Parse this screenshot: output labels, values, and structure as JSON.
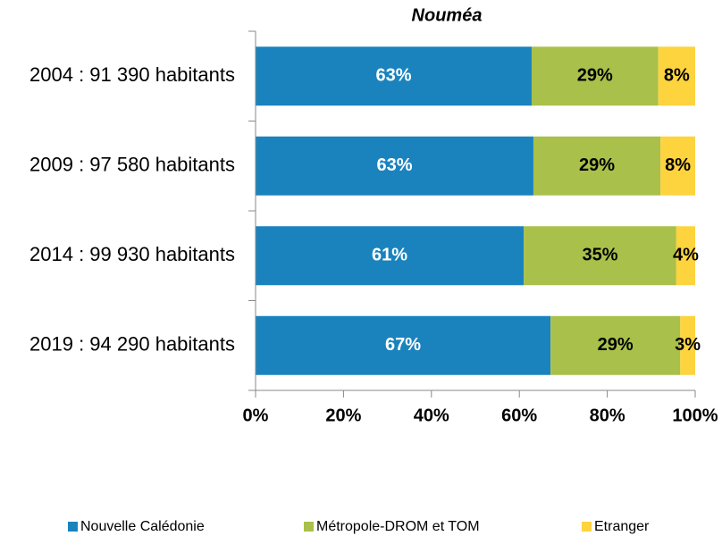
{
  "chart_data": {
    "type": "stacked-bar-horizontal",
    "title": "Nouméa",
    "categories": [
      "2004 : 91 390 habitants",
      "2009 : 97 580 habitants",
      "2014 : 99 930 habitants",
      "2019 : 94 290 habitants"
    ],
    "series": [
      {
        "name": "Nouvelle Calédonie",
        "color": "#1a83be",
        "values": [
          62.8,
          63.2,
          61.0,
          67.1
        ],
        "value_labels": [
          "63%",
          "63%",
          "61%",
          "67%"
        ]
      },
      {
        "name": "Métropole-DROM et TOM",
        "color": "#a9c04a",
        "values": [
          28.8,
          28.9,
          34.7,
          29.5
        ],
        "value_labels": [
          "29%",
          "29%",
          "35%",
          "29%"
        ]
      },
      {
        "name": "Etranger",
        "color": "#fdd33e",
        "values": [
          8.4,
          7.9,
          4.3,
          3.4
        ],
        "value_labels": [
          "8%",
          "8%",
          "4%",
          "3%"
        ]
      }
    ],
    "xlim": [
      0,
      100
    ],
    "xticks": [
      {
        "value": 0,
        "label": "0%"
      },
      {
        "value": 20,
        "label": "20%"
      },
      {
        "value": 40,
        "label": "40%"
      },
      {
        "value": 60,
        "label": "60%"
      },
      {
        "value": 80,
        "label": "80%"
      },
      {
        "value": 100,
        "label": "100%"
      }
    ],
    "legend": "bottom"
  }
}
